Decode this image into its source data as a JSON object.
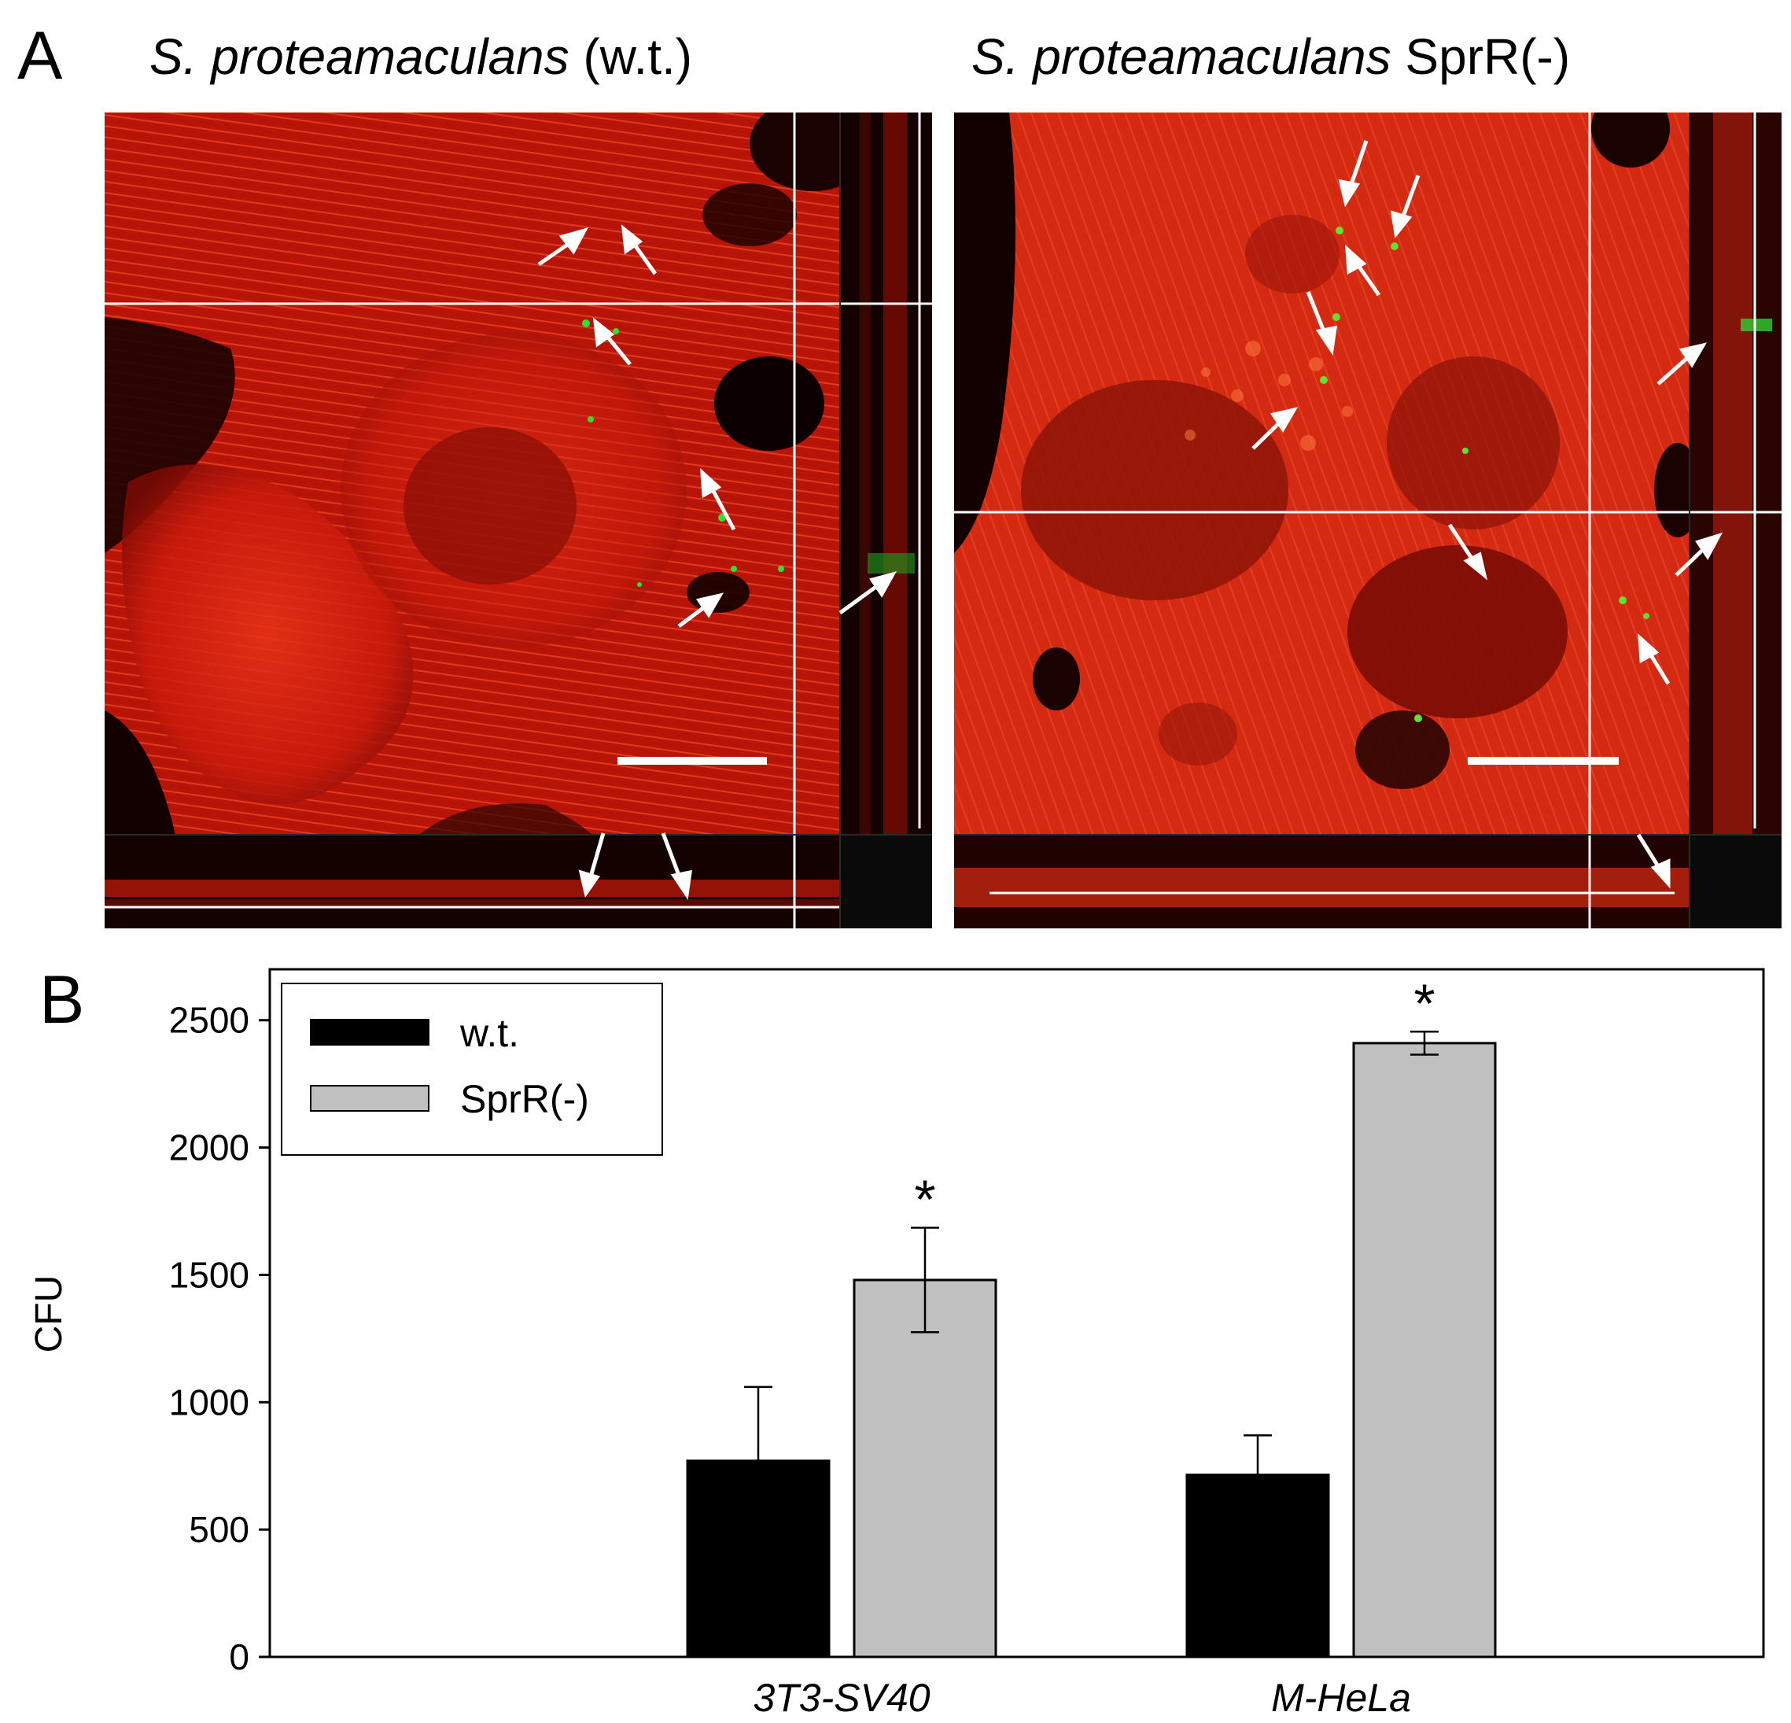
{
  "figure": {
    "panel_a": {
      "letter": "A",
      "left_title_italic": "S. proteamaculans",
      "left_title_rest": " (w.t.)",
      "right_title_italic": "S. proteamaculans",
      "right_title_rest": " SprR(-)",
      "colors": {
        "actin": "#e02010",
        "bacteria": "#20d020",
        "background": "#000000"
      }
    },
    "panel_b": {
      "letter": "B"
    }
  },
  "chart_data": {
    "type": "bar",
    "categories": [
      "3T3-SV40",
      "M-HeLa"
    ],
    "series": [
      {
        "name": "w.t.",
        "values": [
          770,
          715
        ],
        "errors": [
          290,
          155
        ],
        "color": "#000000"
      },
      {
        "name": "SprR(-)",
        "values": [
          1480,
          2410
        ],
        "errors": [
          205,
          45
        ],
        "color": "#c0c0c0"
      }
    ],
    "significance": [
      "*",
      "*"
    ],
    "ylabel": "CFU",
    "xlabel": "",
    "ylim": [
      0,
      2700
    ],
    "yticks": [
      0,
      500,
      1000,
      1500,
      2000,
      2500
    ],
    "legend_position": "top-left",
    "grid": false
  }
}
